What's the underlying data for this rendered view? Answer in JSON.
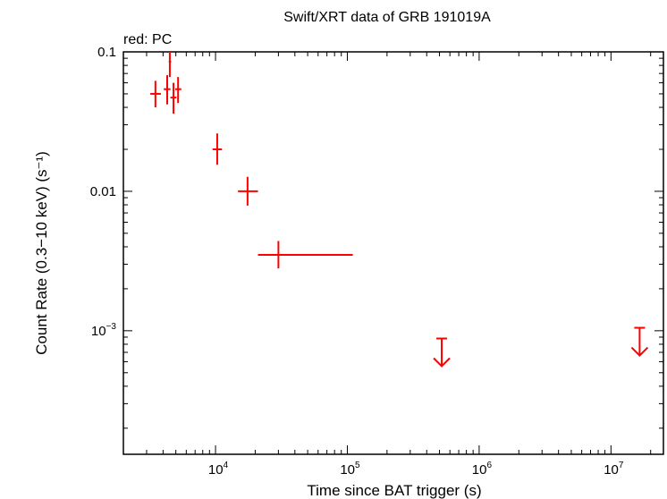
{
  "chart_data": {
    "type": "scatter",
    "title": "Swift/XRT data of GRB 191019A",
    "subtitle": "red: PC",
    "xlabel": "Time since BAT trigger (s)",
    "ylabel": "Count Rate (0.3−10 keV) (s⁻¹)",
    "xscale": "log",
    "yscale": "log",
    "xlim": [
      2000,
      25000000
    ],
    "ylim": [
      0.00013,
      0.1
    ],
    "x_ticks": [
      {
        "value": 10000,
        "label": "10",
        "exp": "4"
      },
      {
        "value": 100000,
        "label": "10",
        "exp": "5"
      },
      {
        "value": 1000000,
        "label": "10",
        "exp": "6"
      },
      {
        "value": 10000000,
        "label": "10",
        "exp": "7"
      }
    ],
    "y_ticks": [
      {
        "value": 0.1,
        "label": "0.1",
        "exp": ""
      },
      {
        "value": 0.01,
        "label": "0.01",
        "exp": ""
      },
      {
        "value": 0.001,
        "label": "10",
        "exp": "−3"
      }
    ],
    "color": "#ff0000",
    "series": [
      {
        "name": "PC",
        "points": [
          {
            "x": 3500,
            "xlo": 3200,
            "xhi": 3850,
            "y": 0.05,
            "ylo": 0.04,
            "yhi": 0.062
          },
          {
            "x": 4300,
            "xlo": 4050,
            "xhi": 4550,
            "y": 0.054,
            "ylo": 0.042,
            "yhi": 0.068
          },
          {
            "x": 4500,
            "xlo": 4420,
            "xhi": 4600,
            "y": 0.085,
            "ylo": 0.066,
            "yhi": 0.1
          },
          {
            "x": 4800,
            "xlo": 4550,
            "xhi": 5050,
            "y": 0.047,
            "ylo": 0.036,
            "yhi": 0.06
          },
          {
            "x": 5200,
            "xlo": 4950,
            "xhi": 5500,
            "y": 0.054,
            "ylo": 0.043,
            "yhi": 0.066
          },
          {
            "x": 10300,
            "xlo": 9500,
            "xhi": 11200,
            "y": 0.02,
            "ylo": 0.0155,
            "yhi": 0.026
          },
          {
            "x": 17500,
            "xlo": 14800,
            "xhi": 21000,
            "y": 0.01,
            "ylo": 0.0079,
            "yhi": 0.0127
          },
          {
            "x": 30000,
            "xlo": 21000,
            "xhi": 110000,
            "y": 0.0035,
            "ylo": 0.0028,
            "yhi": 0.0044
          }
        ],
        "upper_limits": [
          {
            "x": 520000,
            "y": 0.00088
          },
          {
            "x": 16500000,
            "y": 0.00105
          }
        ]
      }
    ]
  }
}
